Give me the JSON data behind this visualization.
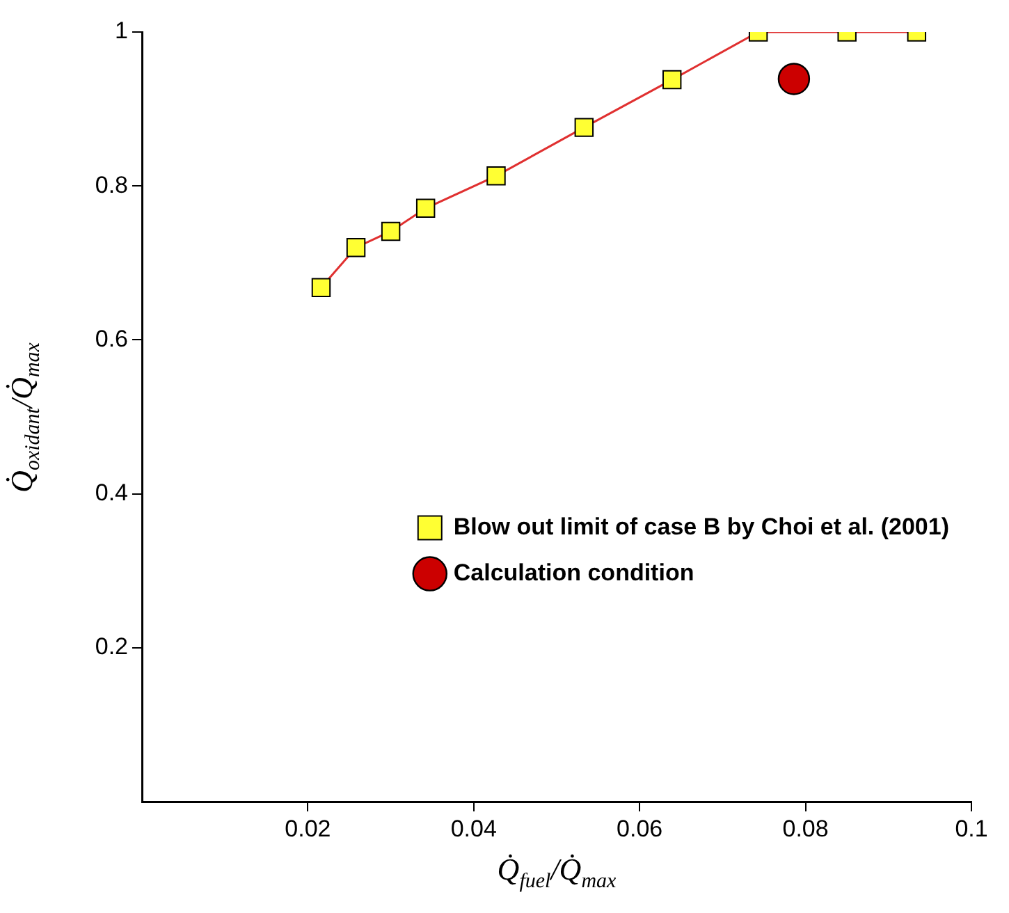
{
  "chart_data": {
    "type": "line",
    "xlabel": "Q̇$_{fuel}$/Q̇$_{max}$",
    "ylabel": "Q̇$_{oxidant}$/Q̇$_{max}$",
    "xlim": [
      0,
      0.1
    ],
    "xticks": [
      0.02,
      0.04,
      0.06,
      0.08,
      0.1
    ],
    "ylim": [
      0,
      1
    ],
    "yticks": [
      0.2,
      0.4,
      0.6,
      0.8,
      1
    ],
    "legend": "right",
    "series": [
      {
        "name": "Blow out limit of case B by Choi et al. (2001)",
        "marker": "square",
        "color": "#e03030",
        "colors": [
          "#ffff33",
          "#ffff33",
          "#ffff33",
          "#ffff33",
          "#ffff33",
          "#ffff33",
          "#ffff33",
          "#ffff33",
          "#ffff33",
          "#ffff33"
        ],
        "x": [
          0.0216,
          0.0258,
          0.03,
          0.0342,
          0.0427,
          0.0533,
          0.0639,
          0.0743,
          0.085,
          0.0934
        ],
        "values": [
          0.668,
          0.72,
          0.741,
          0.771,
          0.813,
          0.876,
          0.938,
          1,
          1,
          1
        ]
      },
      {
        "name": "Calculation condition",
        "type": "scatter",
        "marker": "circle",
        "color": "#cc0000",
        "x": [
          0.0786
        ],
        "values": [
          0.939
        ]
      }
    ]
  }
}
